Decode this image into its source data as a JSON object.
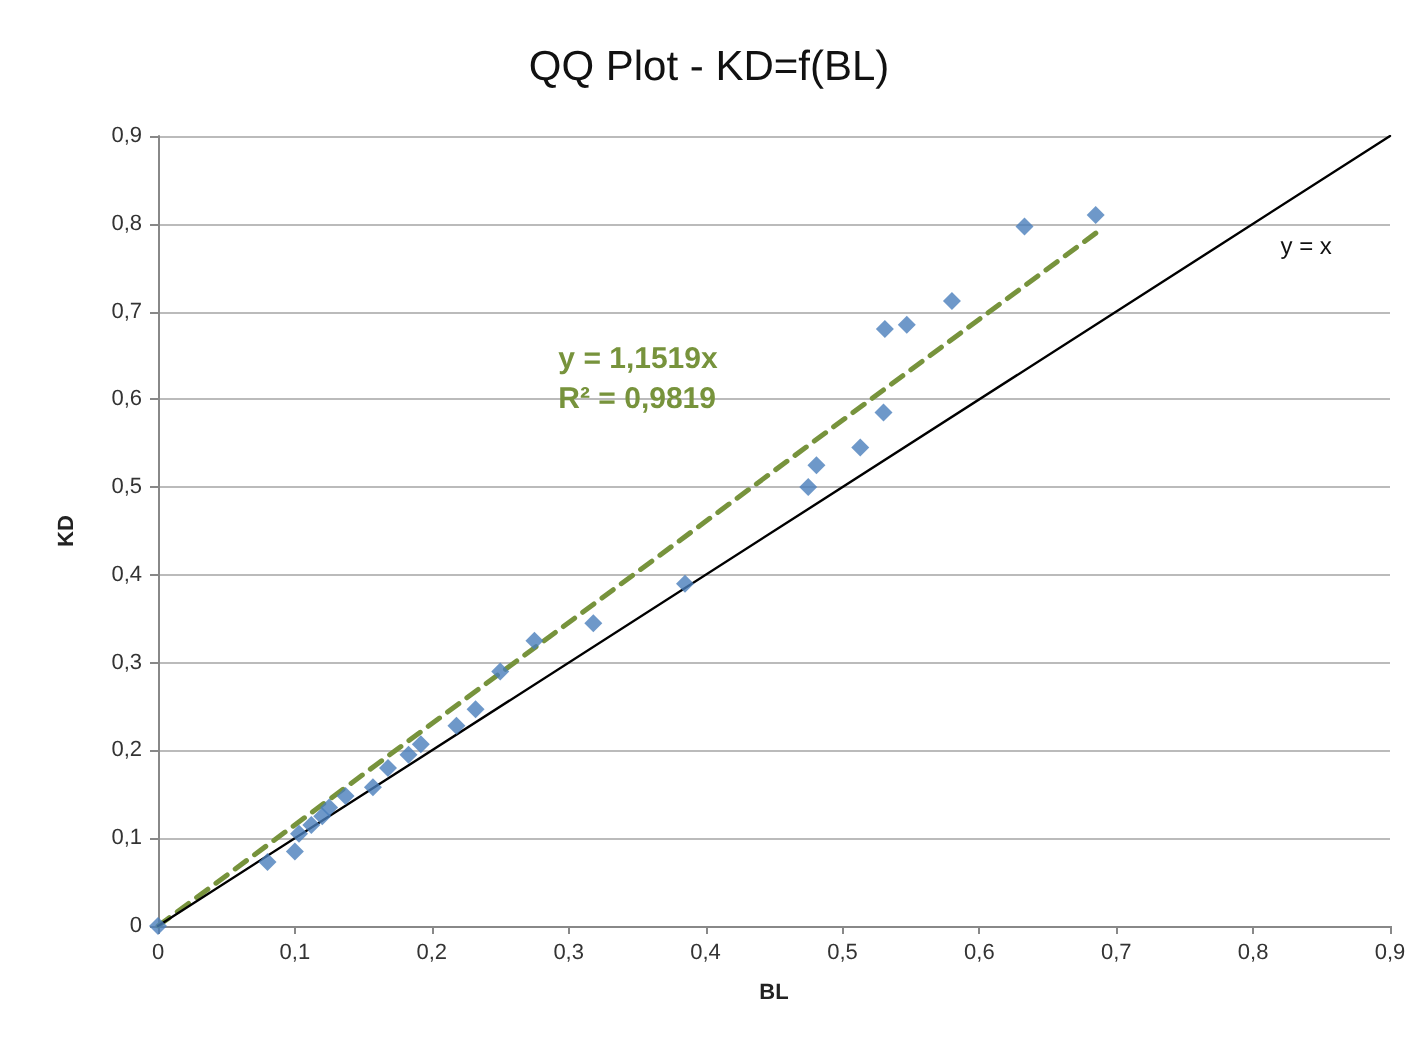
{
  "chart_data": {
    "type": "scatter",
    "title": "QQ Plot - KD=f(BL)",
    "xlabel": "BL",
    "ylabel": "KD",
    "xlim": [
      0,
      0.9
    ],
    "ylim": [
      0,
      0.9
    ],
    "xticks": [
      0,
      {
        "value": 0.1,
        "label": "0,1"
      },
      {
        "value": 0.2,
        "label": "0,2"
      },
      {
        "value": 0.3,
        "label": "0,3"
      },
      {
        "value": 0.4,
        "label": "0,4"
      },
      {
        "value": 0.5,
        "label": "0,5"
      },
      {
        "value": 0.6,
        "label": "0,6"
      },
      {
        "value": 0.7,
        "label": "0,7"
      },
      {
        "value": 0.8,
        "label": "0,8"
      },
      {
        "value": 0.9,
        "label": "0,9"
      }
    ],
    "yticks": [
      0,
      {
        "value": 0.1,
        "label": "0,1"
      },
      {
        "value": 0.2,
        "label": "0,2"
      },
      {
        "value": 0.3,
        "label": "0,3"
      },
      {
        "value": 0.4,
        "label": "0,4"
      },
      {
        "value": 0.5,
        "label": "0,5"
      },
      {
        "value": 0.6,
        "label": "0,6"
      },
      {
        "value": 0.7,
        "label": "0,7"
      },
      {
        "value": 0.8,
        "label": "0,8"
      },
      {
        "value": 0.9,
        "label": "0,9"
      }
    ],
    "grid": "y",
    "legend": false,
    "marker": "diamond",
    "series": [
      {
        "type": "scatter",
        "color": "#4a7ebb",
        "x": [
          0,
          0.08,
          0.1,
          0.103,
          0.112,
          0.12,
          0.125,
          0.137,
          0.157,
          0.168,
          0.183,
          0.192,
          0.218,
          0.232,
          0.25,
          0.275,
          0.318,
          0.385,
          0.475,
          0.481,
          0.513,
          0.53,
          0.531,
          0.547,
          0.58,
          0.633,
          0.685
        ],
        "values": [
          0,
          0.073,
          0.085,
          0.105,
          0.115,
          0.125,
          0.135,
          0.148,
          0.158,
          0.18,
          0.195,
          0.207,
          0.228,
          0.247,
          0.29,
          0.325,
          0.345,
          0.39,
          0.5,
          0.525,
          0.545,
          0.585,
          0.68,
          0.685,
          0.712,
          0.797,
          0.81
        ]
      },
      {
        "type": "line",
        "color": "#77933c",
        "line_style": "dashed",
        "marker": "none",
        "x": [
          0,
          0.69
        ],
        "values": [
          0,
          0.795
        ]
      },
      {
        "type": "line",
        "name": "y = x",
        "color": "#000000",
        "line_style": "solid",
        "marker": "none",
        "x": [
          0,
          0.9
        ],
        "values": [
          0,
          0.9
        ]
      }
    ],
    "annotations": [
      "y = 1,1519x",
      "R² = 0,9819"
    ]
  }
}
